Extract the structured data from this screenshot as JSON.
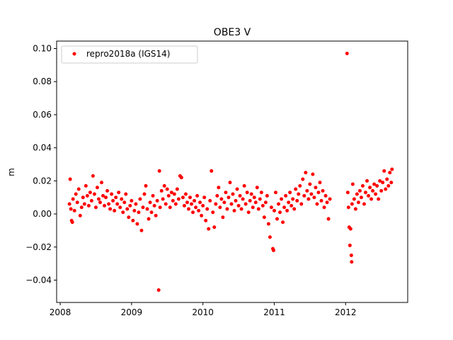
{
  "chart_data": {
    "type": "scatter",
    "title": "OBE3 V",
    "xlabel": "",
    "ylabel": "m",
    "xlim": [
      2007.95,
      2012.87
    ],
    "ylim": [
      -0.0535,
      0.1045
    ],
    "xticks": [
      2008,
      2009,
      2010,
      2011,
      2012
    ],
    "xtick_labels": [
      "2008",
      "2009",
      "2010",
      "2011",
      "2012"
    ],
    "yticks": [
      -0.04,
      -0.02,
      0.0,
      0.02,
      0.04,
      0.06,
      0.08,
      0.1
    ],
    "ytick_labels": [
      "−0.04",
      "−0.02",
      "0.00",
      "0.02",
      "0.04",
      "0.06",
      "0.08",
      "0.10"
    ],
    "grid": false,
    "legend": "upper-left",
    "series": [
      {
        "name": "repro2018a (IGS14)",
        "color": "#ff0000",
        "marker": "dot",
        "points": [
          [
            2008.13,
            0.006
          ],
          [
            2008.14,
            0.021
          ],
          [
            2008.15,
            0.003
          ],
          [
            2008.16,
            -0.004
          ],
          [
            2008.17,
            -0.005
          ],
          [
            2008.18,
            0.009
          ],
          [
            2008.2,
            0.002
          ],
          [
            2008.22,
            0.012
          ],
          [
            2008.24,
            0.007
          ],
          [
            2008.26,
            0.015
          ],
          [
            2008.28,
            -0.001
          ],
          [
            2008.3,
            0.004
          ],
          [
            2008.32,
            0.01
          ],
          [
            2008.34,
            0.006
          ],
          [
            2008.36,
            0.017
          ],
          [
            2008.38,
            0.011
          ],
          [
            2008.4,
            0.005
          ],
          [
            2008.42,
            0.013
          ],
          [
            2008.44,
            0.008
          ],
          [
            2008.46,
            0.023
          ],
          [
            2008.48,
            0.012
          ],
          [
            2008.5,
            0.004
          ],
          [
            2008.52,
            0.016
          ],
          [
            2008.54,
            0.009
          ],
          [
            2008.56,
            0.007
          ],
          [
            2008.58,
            0.019
          ],
          [
            2008.6,
            0.011
          ],
          [
            2008.62,
            0.005
          ],
          [
            2008.64,
            0.01
          ],
          [
            2008.66,
            0.014
          ],
          [
            2008.68,
            0.006
          ],
          [
            2008.7,
            0.003
          ],
          [
            2008.72,
            0.012
          ],
          [
            2008.74,
            0.008
          ],
          [
            2008.76,
            0.002
          ],
          [
            2008.78,
            0.01
          ],
          [
            2008.8,
            0.006
          ],
          [
            2008.82,
            0.013
          ],
          [
            2008.84,
            0.004
          ],
          [
            2008.86,
            0.009
          ],
          [
            2008.88,
            0.001
          ],
          [
            2008.9,
            0.007
          ],
          [
            2008.92,
            0.012
          ],
          [
            2008.94,
            0.003
          ],
          [
            2008.96,
            -0.002
          ],
          [
            2008.98,
            0.005
          ],
          [
            2009.0,
            0.008
          ],
          [
            2009.02,
            -0.004
          ],
          [
            2009.04,
            0.002
          ],
          [
            2009.06,
            0.006
          ],
          [
            2009.08,
            -0.006
          ],
          [
            2009.1,
            0.001
          ],
          [
            2009.12,
            0.009
          ],
          [
            2009.14,
            -0.01
          ],
          [
            2009.16,
            0.004
          ],
          [
            2009.18,
            0.012
          ],
          [
            2009.2,
            0.017
          ],
          [
            2009.22,
            0.003
          ],
          [
            2009.24,
            -0.003
          ],
          [
            2009.26,
            0.007
          ],
          [
            2009.28,
            0.001
          ],
          [
            2009.3,
            0.011
          ],
          [
            2009.32,
            0.005
          ],
          [
            2009.34,
            -0.001
          ],
          [
            2009.36,
            0.008
          ],
          [
            2009.38,
            -0.046
          ],
          [
            2009.39,
            0.026
          ],
          [
            2009.4,
            0.004
          ],
          [
            2009.42,
            0.014
          ],
          [
            2009.44,
            0.009
          ],
          [
            2009.46,
            0.017
          ],
          [
            2009.48,
            0.006
          ],
          [
            2009.5,
            0.015
          ],
          [
            2009.52,
            0.011
          ],
          [
            2009.54,
            0.004
          ],
          [
            2009.56,
            0.013
          ],
          [
            2009.58,
            0.008
          ],
          [
            2009.6,
            0.012
          ],
          [
            2009.62,
            0.006
          ],
          [
            2009.64,
            0.015
          ],
          [
            2009.66,
            0.009
          ],
          [
            2009.68,
            0.023
          ],
          [
            2009.7,
            0.022
          ],
          [
            2009.72,
            0.01
          ],
          [
            2009.74,
            0.005
          ],
          [
            2009.76,
            0.012
          ],
          [
            2009.78,
            0.007
          ],
          [
            2009.8,
            0.003
          ],
          [
            2009.82,
            0.01
          ],
          [
            2009.84,
            0.006
          ],
          [
            2009.86,
            0.001
          ],
          [
            2009.88,
            0.008
          ],
          [
            2009.9,
            0.004
          ],
          [
            2009.92,
            0.011
          ],
          [
            2009.94,
            0.002
          ],
          [
            2009.96,
            0.007
          ],
          [
            2009.98,
            -0.001
          ],
          [
            2010.0,
            0.005
          ],
          [
            2010.02,
            0.01
          ],
          [
            2010.04,
            -0.004
          ],
          [
            2010.06,
            0.003
          ],
          [
            2010.08,
            -0.009
          ],
          [
            2010.1,
            0.008
          ],
          [
            2010.12,
            0.026
          ],
          [
            2010.14,
            0.001
          ],
          [
            2010.16,
            -0.008
          ],
          [
            2010.18,
            0.006
          ],
          [
            2010.2,
            0.011
          ],
          [
            2010.22,
            0.016
          ],
          [
            2010.24,
            0.004
          ],
          [
            2010.26,
            0.009
          ],
          [
            2010.28,
            -0.002
          ],
          [
            2010.3,
            0.007
          ],
          [
            2010.32,
            0.013
          ],
          [
            2010.34,
            0.003
          ],
          [
            2010.36,
            0.01
          ],
          [
            2010.38,
            0.019
          ],
          [
            2010.4,
            0.006
          ],
          [
            2010.42,
            0.012
          ],
          [
            2010.44,
            0.002
          ],
          [
            2010.46,
            0.008
          ],
          [
            2010.48,
            0.015
          ],
          [
            2010.5,
            0.005
          ],
          [
            2010.52,
            0.011
          ],
          [
            2010.54,
            0.003
          ],
          [
            2010.56,
            0.009
          ],
          [
            2010.58,
            0.017
          ],
          [
            2010.6,
            0.006
          ],
          [
            2010.62,
            0.013
          ],
          [
            2010.64,
            0.001
          ],
          [
            2010.66,
            0.008
          ],
          [
            2010.68,
            0.012
          ],
          [
            2010.7,
            0.004
          ],
          [
            2010.72,
            0.01
          ],
          [
            2010.74,
            0.007
          ],
          [
            2010.76,
            0.016
          ],
          [
            2010.78,
            0.003
          ],
          [
            2010.8,
            0.009
          ],
          [
            2010.82,
            0.013
          ],
          [
            2010.84,
            0.005
          ],
          [
            2010.86,
            -0.002
          ],
          [
            2010.88,
            0.007
          ],
          [
            2010.9,
            0.011
          ],
          [
            2010.92,
            -0.006
          ],
          [
            2010.94,
            -0.014
          ],
          [
            2010.96,
            0.004
          ],
          [
            2010.98,
            -0.021
          ],
          [
            2010.99,
            -0.022
          ],
          [
            2011.0,
            0.002
          ],
          [
            2011.02,
            0.013
          ],
          [
            2011.04,
            -0.003
          ],
          [
            2011.06,
            0.006
          ],
          [
            2011.08,
            0.001
          ],
          [
            2011.1,
            0.009
          ],
          [
            2011.12,
            -0.005
          ],
          [
            2011.14,
            0.004
          ],
          [
            2011.16,
            0.011
          ],
          [
            2011.18,
            0.002
          ],
          [
            2011.2,
            0.007
          ],
          [
            2011.22,
            0.013
          ],
          [
            2011.24,
            0.005
          ],
          [
            2011.26,
            0.009
          ],
          [
            2011.28,
            0.003
          ],
          [
            2011.3,
            0.015
          ],
          [
            2011.32,
            0.008
          ],
          [
            2011.34,
            0.012
          ],
          [
            2011.36,
            0.017
          ],
          [
            2011.38,
            0.006
          ],
          [
            2011.4,
            0.021
          ],
          [
            2011.42,
            0.011
          ],
          [
            2011.44,
            0.025
          ],
          [
            2011.46,
            0.014
          ],
          [
            2011.48,
            0.009
          ],
          [
            2011.5,
            0.018
          ],
          [
            2011.52,
            0.012
          ],
          [
            2011.54,
            0.024
          ],
          [
            2011.56,
            0.01
          ],
          [
            2011.58,
            0.016
          ],
          [
            2011.6,
            0.006
          ],
          [
            2011.62,
            0.013
          ],
          [
            2011.64,
            0.019
          ],
          [
            2011.66,
            0.008
          ],
          [
            2011.68,
            0.014
          ],
          [
            2011.7,
            0.004
          ],
          [
            2011.72,
            0.011
          ],
          [
            2011.74,
            0.007
          ],
          [
            2011.76,
            -0.003
          ],
          [
            2011.78,
            0.009
          ],
          [
            2012.02,
            0.097
          ],
          [
            2012.03,
            0.013
          ],
          [
            2012.04,
            0.004
          ],
          [
            2012.05,
            -0.008
          ],
          [
            2012.06,
            -0.019
          ],
          [
            2012.07,
            -0.009
          ],
          [
            2012.08,
            -0.025
          ],
          [
            2012.085,
            -0.029
          ],
          [
            2012.09,
            0.006
          ],
          [
            2012.1,
            0.018
          ],
          [
            2012.12,
            0.009
          ],
          [
            2012.14,
            0.003
          ],
          [
            2012.16,
            0.012
          ],
          [
            2012.18,
            0.007
          ],
          [
            2012.2,
            0.014
          ],
          [
            2012.22,
            0.01
          ],
          [
            2012.24,
            0.017
          ],
          [
            2012.26,
            0.006
          ],
          [
            2012.28,
            0.013
          ],
          [
            2012.3,
            0.02
          ],
          [
            2012.32,
            0.011
          ],
          [
            2012.34,
            0.016
          ],
          [
            2012.36,
            0.009
          ],
          [
            2012.38,
            0.014
          ],
          [
            2012.4,
            0.018
          ],
          [
            2012.42,
            0.012
          ],
          [
            2012.44,
            0.017
          ],
          [
            2012.46,
            0.009
          ],
          [
            2012.48,
            0.02
          ],
          [
            2012.5,
            0.014
          ],
          [
            2012.52,
            0.019
          ],
          [
            2012.54,
            0.026
          ],
          [
            2012.56,
            0.015
          ],
          [
            2012.58,
            0.021
          ],
          [
            2012.6,
            0.017
          ],
          [
            2012.62,
            0.025
          ],
          [
            2012.64,
            0.019
          ],
          [
            2012.65,
            0.027
          ]
        ]
      }
    ]
  }
}
